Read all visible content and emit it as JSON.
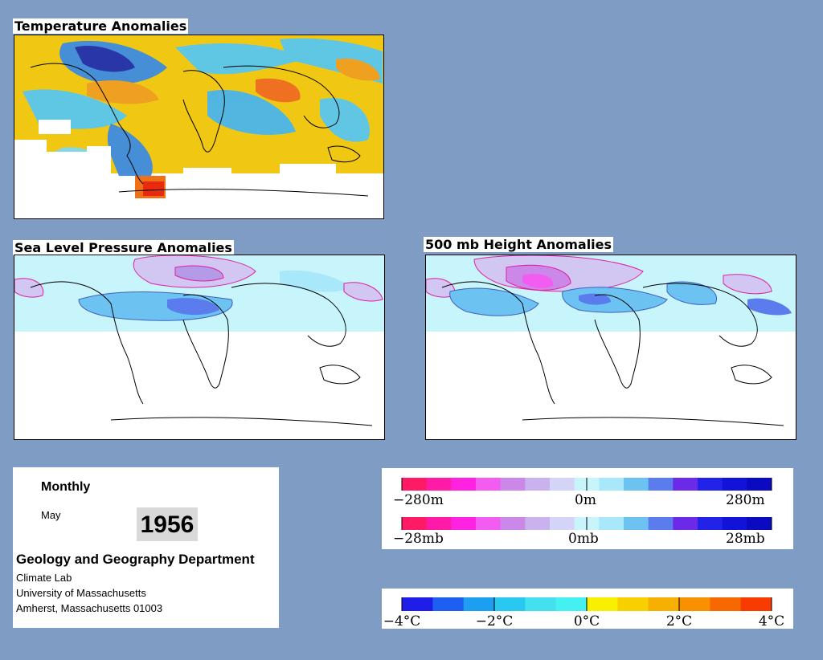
{
  "panels": {
    "temperature_title": "Temperature Anomalies",
    "slp_title": "Sea Level Pressure Anomalies",
    "height_title": "500 mb Height Anomalies"
  },
  "info": {
    "period": "Monthly",
    "month": "May",
    "year": "1956",
    "department": "Geology and Geography Department",
    "lab": "Climate Lab",
    "university": "University of Massachusetts",
    "address": "Amherst, Massachusetts 01003"
  },
  "height_scale": {
    "left": "−280m",
    "center": "0m",
    "right": "280m"
  },
  "pressure_scale": {
    "left": "−28mb",
    "center": "0mb",
    "right": "28mb"
  },
  "temp_scale": {
    "labels": [
      "−4°C",
      "−2°C",
      "0°C",
      "2°C",
      "4°C"
    ]
  },
  "colors": {
    "background": "#7f9cc4",
    "diverging": [
      "#ff1a66",
      "#ff1aa8",
      "#ff22e0",
      "#f25cf0",
      "#cc88e8",
      "#c9b2ee",
      "#d4d4f8",
      "#c8f4fb",
      "#a8e8fa",
      "#6cc3f2",
      "#5a7cec",
      "#6a2ae8",
      "#2222e8",
      "#1212d8",
      "#0a0ac0"
    ],
    "temperature": [
      "#1e1ee8",
      "#1e5ef0",
      "#1e9ef0",
      "#28c8f0",
      "#44e0f0",
      "#44f0f0",
      "#f8f000",
      "#f8d000",
      "#f8b000",
      "#f89000",
      "#f86800",
      "#f83c00"
    ]
  }
}
